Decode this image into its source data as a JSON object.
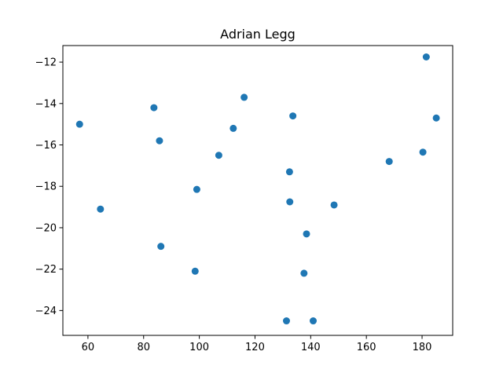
{
  "chart_data": {
    "type": "scatter",
    "title": "Adrian Legg",
    "xlabel": "",
    "ylabel": "",
    "xlim": [
      51.0,
      191.0
    ],
    "ylim": [
      -25.2,
      -11.2
    ],
    "xticks": [
      60,
      80,
      100,
      120,
      140,
      160,
      180
    ],
    "yticks": [
      -24,
      -22,
      -20,
      -18,
      -16,
      -14,
      -12
    ],
    "grid": false,
    "legend": "none",
    "marker_color": "#1f77b4",
    "points": [
      {
        "x": 57.0,
        "y": -15.0
      },
      {
        "x": 64.5,
        "y": -19.1
      },
      {
        "x": 83.7,
        "y": -14.2
      },
      {
        "x": 85.7,
        "y": -15.8
      },
      {
        "x": 86.2,
        "y": -20.9
      },
      {
        "x": 98.5,
        "y": -22.1
      },
      {
        "x": 99.1,
        "y": -18.15
      },
      {
        "x": 107.0,
        "y": -16.5
      },
      {
        "x": 112.2,
        "y": -15.2
      },
      {
        "x": 116.1,
        "y": -13.7
      },
      {
        "x": 131.3,
        "y": -24.5
      },
      {
        "x": 132.4,
        "y": -17.3
      },
      {
        "x": 132.5,
        "y": -18.75
      },
      {
        "x": 133.6,
        "y": -14.6
      },
      {
        "x": 137.6,
        "y": -22.2
      },
      {
        "x": 138.5,
        "y": -20.3
      },
      {
        "x": 140.9,
        "y": -24.5
      },
      {
        "x": 148.4,
        "y": -18.9
      },
      {
        "x": 168.2,
        "y": -16.8
      },
      {
        "x": 180.3,
        "y": -16.35
      },
      {
        "x": 181.5,
        "y": -11.75
      },
      {
        "x": 185.1,
        "y": -14.7
      }
    ]
  }
}
